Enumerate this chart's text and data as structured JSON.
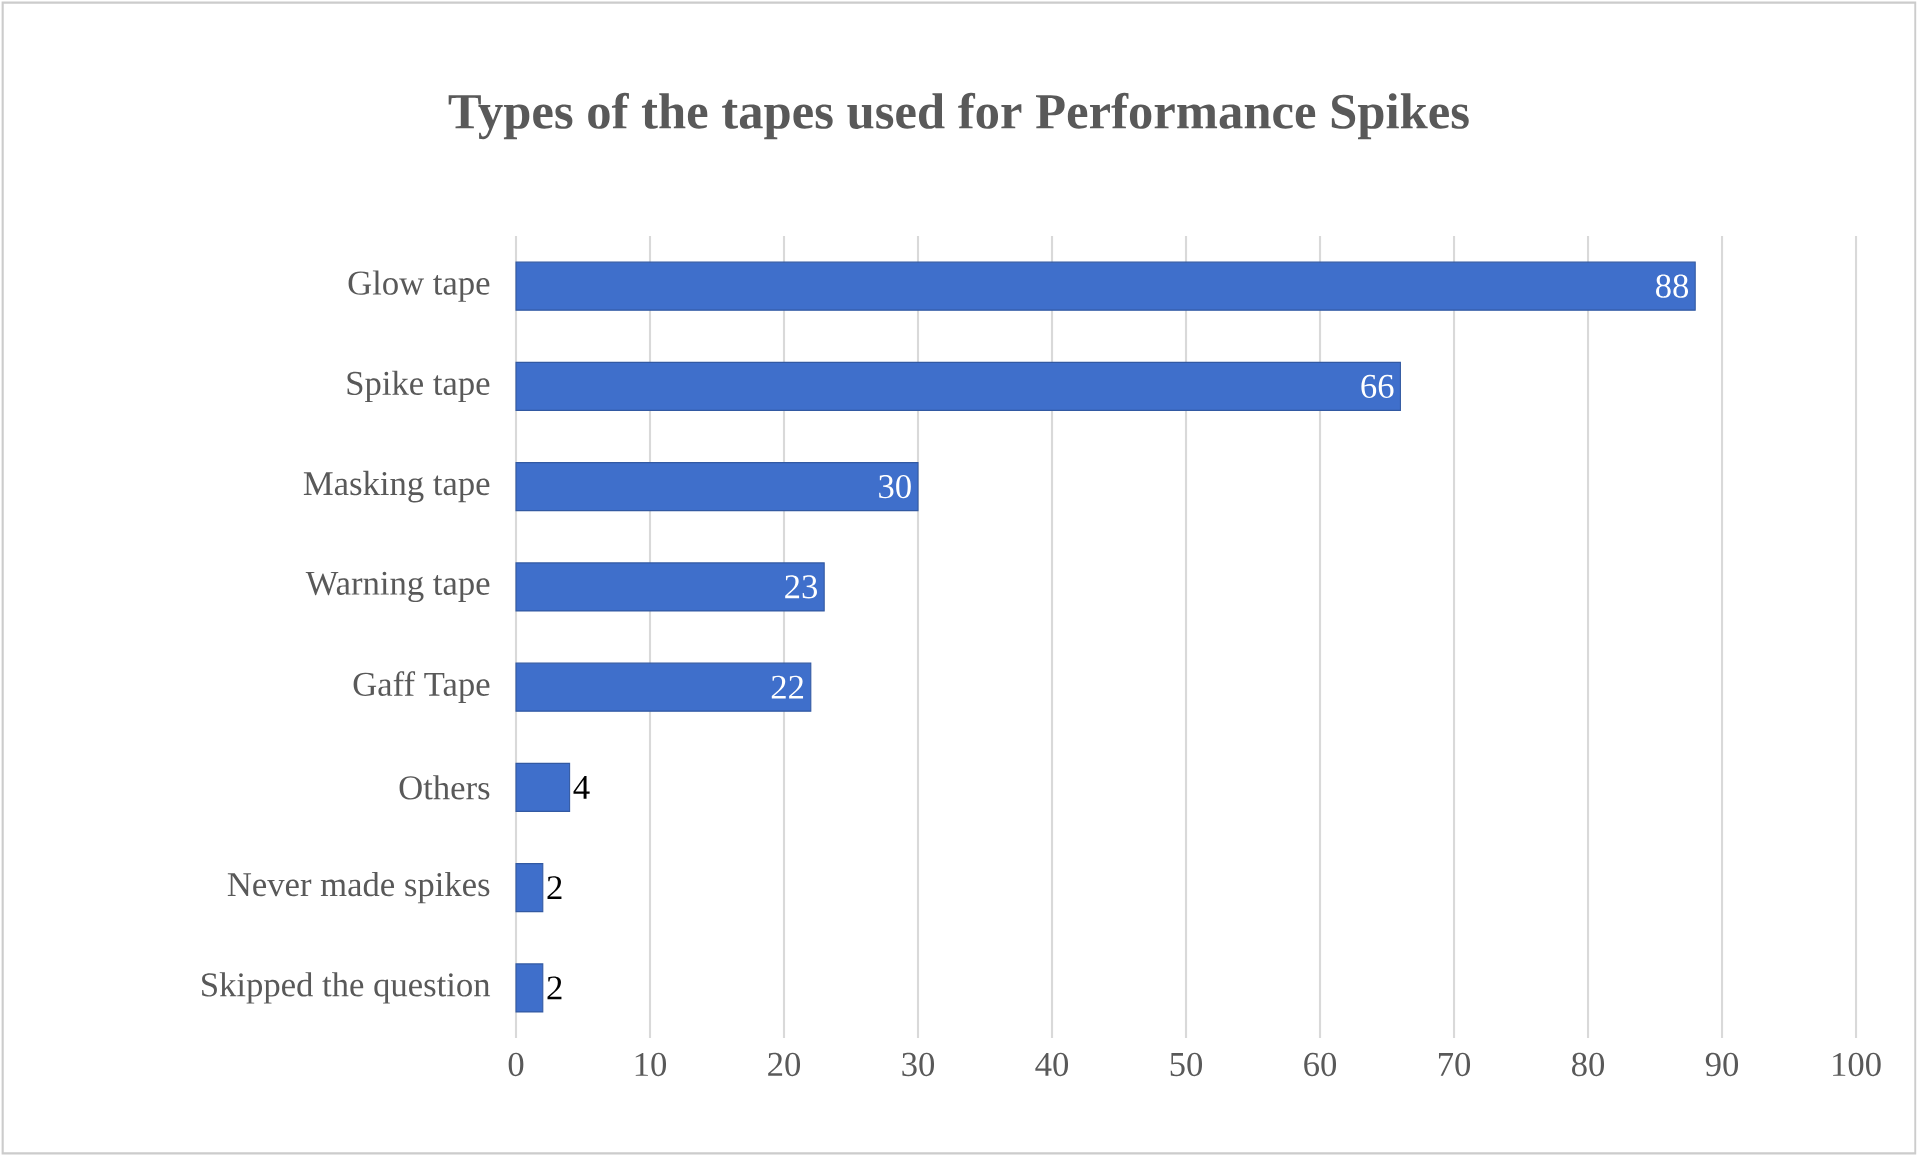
{
  "chart_data": {
    "type": "bar",
    "orientation": "horizontal",
    "title": "Types of the tapes used for Performance Spikes",
    "categories": [
      "Glow tape",
      "Spike tape",
      "Masking tape",
      "Warning tape",
      "Gaff Tape",
      "Others",
      "Never made spikes",
      "Skipped the question"
    ],
    "values": [
      88,
      66,
      30,
      23,
      22,
      4,
      2,
      2
    ],
    "color": "#3f6fcb",
    "data_labels": true,
    "grid": "x",
    "xlim": [
      0,
      100
    ],
    "xticks": [
      0,
      10,
      20,
      30,
      40,
      50,
      60,
      70,
      80,
      90,
      100
    ]
  }
}
